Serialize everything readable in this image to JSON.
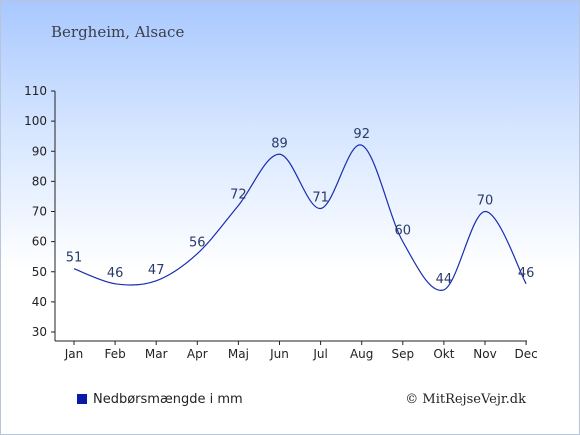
{
  "chart_data": {
    "type": "line",
    "title": "Bergheim, Alsace",
    "categories": [
      "Jan",
      "Feb",
      "Mar",
      "Apr",
      "Maj",
      "Jun",
      "Jul",
      "Aug",
      "Sep",
      "Okt",
      "Nov",
      "Dec"
    ],
    "series": [
      {
        "name": "Nedbørsmængde i mm",
        "values": [
          51,
          46,
          47,
          56,
          72,
          89,
          71,
          92,
          60,
          44,
          70,
          46
        ],
        "color": "#1a2fb0"
      }
    ],
    "yticks": [
      30,
      40,
      50,
      60,
      70,
      80,
      90,
      100,
      110
    ],
    "ylim": [
      30,
      110
    ],
    "grid": false,
    "legend_position": "bottom-left",
    "legend_marker_color": "#0a1aa8"
  },
  "credit": "© MitRejseVejr.dk"
}
